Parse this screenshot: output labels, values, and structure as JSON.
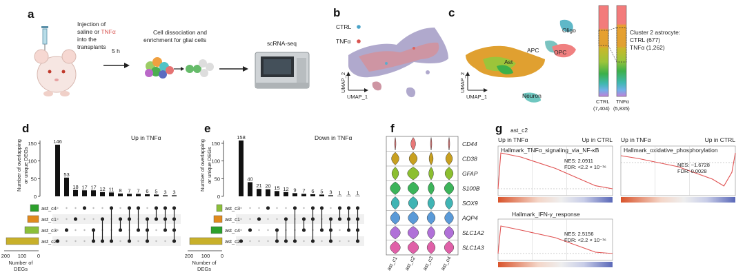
{
  "panel_labels": [
    "a",
    "b",
    "c",
    "d",
    "e",
    "f",
    "g"
  ],
  "panel_a": {
    "step1_line1": "Injection of",
    "step1_line2a": "saline or ",
    "step1_line2b": "TNFα",
    "step1_line3": "into the",
    "step1_line4": "transplants",
    "time_label": "5 h",
    "step2_line1": "Cell dissociation and",
    "step2_line2": "enrichment for glial cells",
    "step3": "scRNA-seq"
  },
  "panel_b": {
    "legend": [
      {
        "label": "CTRL",
        "color": "#4aa3c8"
      },
      {
        "label": "TNFα",
        "color": "#d9534f"
      }
    ],
    "xaxis": "UMAP_1",
    "yaxis": "UMAP_2"
  },
  "panel_c": {
    "clusters": [
      {
        "label": "Oligo",
        "color": "#5fb8c8"
      },
      {
        "label": "APC",
        "color": "#7ac3c0"
      },
      {
        "label": "OPC",
        "color": "#f08080"
      },
      {
        "label": "Ast",
        "color": "#e0a030"
      },
      {
        "label": "Neuron",
        "color": "#6fc7c0"
      }
    ],
    "xaxis": "UMAP_1",
    "yaxis": "UMAP_2",
    "annotation_title": "Cluster 2 astrocyte:",
    "annotation_ctrl": "CTRL (677)",
    "annotation_tnf": "TNFα (1,262)",
    "bars": [
      {
        "label": "CTRL",
        "count": "(7,404)"
      },
      {
        "label": "TNFα",
        "count": "(5,835)"
      }
    ]
  },
  "chart_data": [
    {
      "type": "bar",
      "panel": "d",
      "title": "Up in TNFα",
      "ylabel_line1": "Number of overlapping",
      "ylabel_line2": "or unique DEGs",
      "ylim": [
        0,
        150
      ],
      "yticks": [
        "0",
        "50",
        "100",
        "150"
      ],
      "values": [
        146,
        53,
        18,
        17,
        17,
        12,
        11,
        8,
        7,
        7,
        6,
        5,
        3,
        3
      ],
      "sets": [
        "ast_c4",
        "ast_c1",
        "ast_c3",
        "ast_c2"
      ],
      "set_sizes": [
        60,
        80,
        100,
        235
      ],
      "set_colors": [
        "#2ca02c",
        "#e08a1e",
        "#8bbf3a",
        "#c8b02a"
      ],
      "set_xlabel_line1": "Number of",
      "set_xlabel_line2": "DEGs",
      "set_ticks": [
        "200",
        "100",
        "0"
      ]
    },
    {
      "type": "bar",
      "panel": "e",
      "title": "Down in TNFα",
      "ylabel_line1": "Number of overlapping",
      "ylabel_line2": "or unique DEGs",
      "ylim": [
        0,
        150
      ],
      "yticks": [
        "0",
        "50",
        "100",
        "150"
      ],
      "values": [
        158,
        40,
        21,
        20,
        15,
        12,
        9,
        7,
        6,
        5,
        3,
        1,
        1,
        1
      ],
      "sets": [
        "ast_c3",
        "ast_c1",
        "ast_c4",
        "ast_c2"
      ],
      "set_sizes": [
        40,
        60,
        80,
        235
      ],
      "set_colors": [
        "#8bbf3a",
        "#e08a1e",
        "#2ca02c",
        "#c8b02a"
      ],
      "set_xlabel_line1": "Number of",
      "set_xlabel_line2": "DEGs",
      "set_ticks": [
        "200",
        "100",
        "0"
      ]
    }
  ],
  "panel_f": {
    "genes": [
      "CD44",
      "CD38",
      "GFAP",
      "S100B",
      "SOX9",
      "AQP4",
      "SLC1A2",
      "SLC1A3"
    ],
    "gene_colors": [
      "#e87878",
      "#c8a020",
      "#8cbf30",
      "#3cb45a",
      "#40b4b4",
      "#5a9ad8",
      "#b070d8",
      "#e060a8"
    ],
    "groups": [
      "ast_c1",
      "ast_c2",
      "ast_c3",
      "ast_c4"
    ]
  },
  "panel_g": {
    "cluster": "ast_c2",
    "plots": [
      {
        "left": "Up in TNFα",
        "right": "Up in CTRL",
        "title": "Hallmark_TNFα_signaling_via_NF-κB",
        "nes": "NES: 2.0911",
        "fdr": "FDR: <2.2 × 10⁻¹⁶"
      },
      {
        "left": "Up in TNFα",
        "right": "Up in CTRL",
        "title": "Hallmark_oxidative_phosphorylation",
        "nes": "NES: −1.6728",
        "fdr": "FDR: 0.0028"
      },
      {
        "left": "",
        "right": "",
        "title": "Hallmark_IFN-γ_response",
        "nes": "NES: 2.5156",
        "fdr": "FDR: <2.2 × 10⁻¹⁶"
      }
    ]
  }
}
